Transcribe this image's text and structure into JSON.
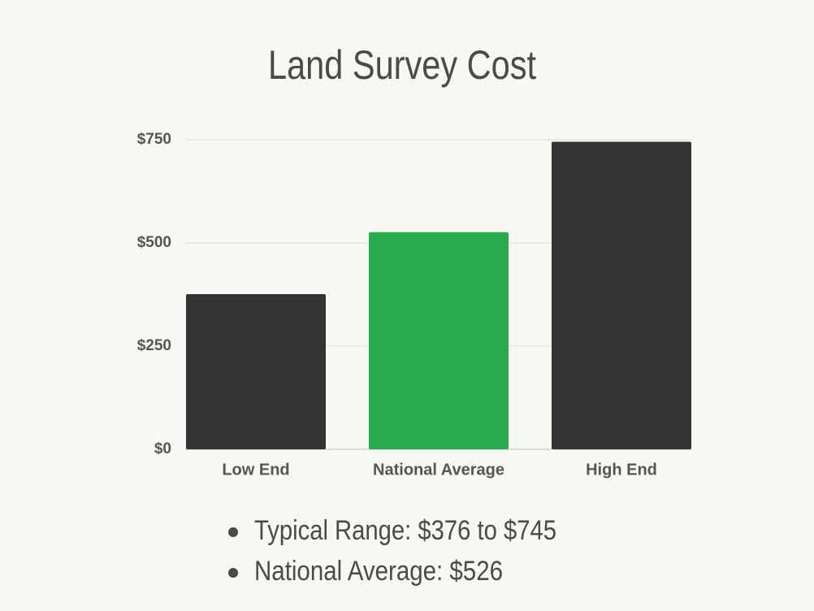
{
  "chart_data": {
    "type": "bar",
    "title": "Land Survey Cost",
    "categories": [
      "Low End",
      "National Average",
      "High End"
    ],
    "values": [
      376,
      526,
      745
    ],
    "colors": [
      "#333333",
      "#2aab4f",
      "#333333"
    ],
    "ylim": [
      0,
      750
    ],
    "yticks": [
      {
        "value": 0,
        "label": "$0"
      },
      {
        "value": 250,
        "label": "$250"
      },
      {
        "value": 500,
        "label": "$500"
      },
      {
        "value": 750,
        "label": "$750"
      }
    ],
    "grid": true,
    "notes": [
      "Typical Range: $376 to $745",
      "National Average: $526"
    ]
  }
}
